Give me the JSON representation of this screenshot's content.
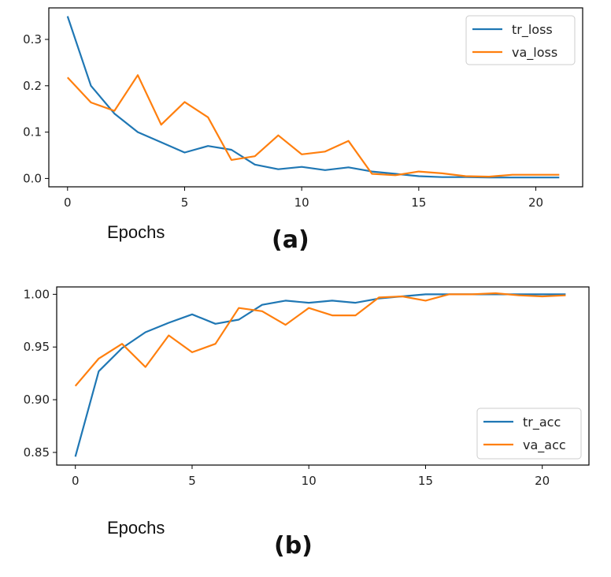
{
  "chart_data": [
    {
      "type": "line",
      "caption": "(a)",
      "xlabel": "Epochs",
      "ylabel": "",
      "xlim": [
        -0.8,
        22
      ],
      "ylim": [
        -0.018,
        0.368
      ],
      "xticks": [
        0,
        5,
        10,
        15,
        20
      ],
      "yticks": [
        0.0,
        0.1,
        0.2,
        0.3
      ],
      "ytick_labels": [
        "0.0",
        "0.1",
        "0.2",
        "0.3"
      ],
      "legend_position": "top-right",
      "x": [
        0,
        1,
        2,
        3,
        4,
        5,
        6,
        7,
        8,
        9,
        10,
        11,
        12,
        13,
        14,
        15,
        16,
        17,
        18,
        19,
        20,
        21
      ],
      "series": [
        {
          "name": "tr_loss",
          "color": "#1f77b4",
          "values": [
            0.35,
            0.2,
            0.14,
            0.1,
            0.078,
            0.056,
            0.07,
            0.062,
            0.03,
            0.02,
            0.025,
            0.018,
            0.024,
            0.015,
            0.01,
            0.005,
            0.003,
            0.003,
            0.002,
            0.002,
            0.002,
            0.002
          ]
        },
        {
          "name": "va_loss",
          "color": "#ff7f0e",
          "values": [
            0.218,
            0.164,
            0.146,
            0.223,
            0.116,
            0.165,
            0.132,
            0.04,
            0.048,
            0.093,
            0.052,
            0.058,
            0.081,
            0.01,
            0.007,
            0.015,
            0.011,
            0.005,
            0.004,
            0.008,
            0.008,
            0.008
          ]
        }
      ]
    },
    {
      "type": "line",
      "caption": "(b)",
      "xlabel": "Epochs",
      "ylabel": "",
      "xlim": [
        -0.8,
        22
      ],
      "ylim": [
        0.838,
        1.007
      ],
      "xticks": [
        0,
        5,
        10,
        15,
        20
      ],
      "yticks": [
        0.85,
        0.9,
        0.95,
        1.0
      ],
      "ytick_labels": [
        "0.85",
        "0.90",
        "0.95",
        "1.00"
      ],
      "legend_position": "bottom-right",
      "x": [
        0,
        1,
        2,
        3,
        4,
        5,
        6,
        7,
        8,
        9,
        10,
        11,
        12,
        13,
        14,
        15,
        16,
        17,
        18,
        19,
        20,
        21
      ],
      "series": [
        {
          "name": "tr_acc",
          "color": "#1f77b4",
          "values": [
            0.846,
            0.927,
            0.949,
            0.964,
            0.973,
            0.981,
            0.972,
            0.976,
            0.99,
            0.994,
            0.992,
            0.994,
            0.992,
            0.996,
            0.998,
            1.0,
            1.0,
            1.0,
            1.0,
            1.0,
            1.0,
            1.0
          ]
        },
        {
          "name": "va_acc",
          "color": "#ff7f0e",
          "values": [
            0.913,
            0.939,
            0.953,
            0.931,
            0.961,
            0.945,
            0.953,
            0.987,
            0.984,
            0.971,
            0.987,
            0.98,
            0.98,
            0.997,
            0.998,
            0.994,
            1.0,
            1.0,
            1.001,
            0.999,
            0.998,
            0.999
          ]
        }
      ]
    }
  ]
}
